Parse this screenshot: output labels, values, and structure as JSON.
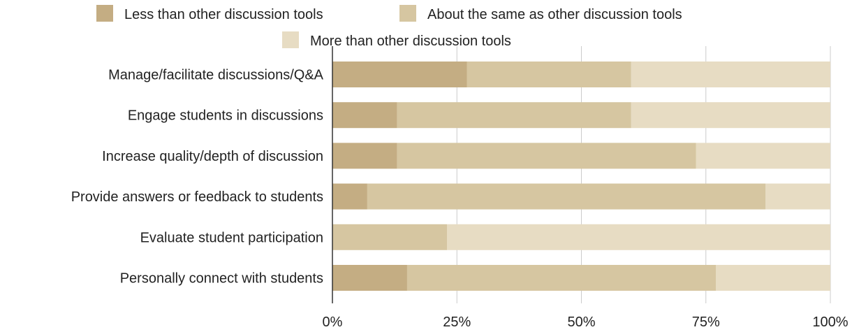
{
  "chart_data": {
    "type": "bar",
    "orientation": "horizontal",
    "stacked": true,
    "percent_stacked": true,
    "categories": [
      "Manage/facilitate discussions/Q&A",
      "Engage students in discussions",
      "Increase quality/depth of discussion",
      "Provide answers or feedback to students",
      "Evaluate student participation",
      "Personally connect with students"
    ],
    "series": [
      {
        "name": "Less than other discussion tools",
        "color": "#c4ad83",
        "values": [
          27,
          13,
          13,
          7,
          0,
          15
        ]
      },
      {
        "name": "About the same as other discussion tools",
        "color": "#d6c6a1",
        "values": [
          33,
          47,
          60,
          80,
          23,
          62
        ]
      },
      {
        "name": "More than other discussion tools",
        "color": "#e7dcc3",
        "values": [
          40,
          40,
          27,
          13,
          77,
          23
        ]
      }
    ],
    "xlim": [
      0,
      100
    ],
    "x_ticks": [
      "0%",
      "25%",
      "50%",
      "75%",
      "100%"
    ],
    "x_tick_values": [
      0,
      25,
      50,
      75,
      100
    ],
    "legend_position": "top",
    "grid": true
  }
}
